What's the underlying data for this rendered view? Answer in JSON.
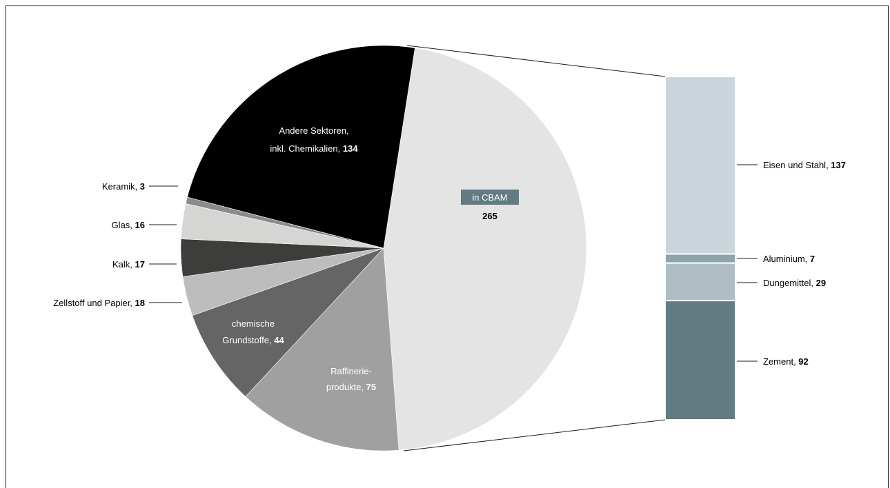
{
  "chart_data": {
    "type": "pie",
    "pie": {
      "slices": [
        {
          "label": "in CBAM",
          "value": 265,
          "color": "#e3e4e3"
        },
        {
          "label": "Raffinerie-produkte",
          "value": 75,
          "color": "#9fa09f"
        },
        {
          "label": "chemische Grundstoffe",
          "value": 44,
          "color": "#646564"
        },
        {
          "label": "Zellstoff und Papier",
          "value": 18,
          "color": "#bcbdbc"
        },
        {
          "label": "Kalk",
          "value": 17,
          "color": "#3d3d3b"
        },
        {
          "label": "Glas",
          "value": 16,
          "color": "#d5d5d4"
        },
        {
          "label": "Keramik",
          "value": 3,
          "color": "#8a8b8a"
        },
        {
          "label": "Andere Sektoren, inkl. Chemikalien",
          "value": 134,
          "color": "#000000"
        }
      ]
    },
    "bar": {
      "segments": [
        {
          "label": "Eisen und Stahl",
          "value": 137,
          "color": "#cbd6dc"
        },
        {
          "label": "Aluminium",
          "value": 7,
          "color": "#8ea3ac"
        },
        {
          "label": "Dungemittel",
          "value": 29,
          "color": "#aebec4"
        },
        {
          "label": "Zement",
          "value": 92,
          "color": "#627a82"
        }
      ]
    }
  },
  "labels": {
    "andere_line1": "Andere Sektoren,",
    "andere_line2": "inkl. Chemikalien, ",
    "andere_value": "134",
    "cbam_label": "in CBAM",
    "cbam_value": "265",
    "raff_line1": "Raffinerie-",
    "raff_line2": "produkte, ",
    "raff_value": "75",
    "chem_line1": "chemische",
    "chem_line2": "Grundstoffe, ",
    "chem_value": "44",
    "keramik_name": "Keramik, ",
    "keramik_value": "3",
    "glas_name": "Glas, ",
    "glas_value": "16",
    "kalk_name": "Kalk, ",
    "kalk_value": "17",
    "zellstoff_name": "Zellstoff und Papier, ",
    "zellstoff_value": "18",
    "eisen_name": "Eisen und Stahl, ",
    "eisen_value": "137",
    "alu_name": "Aluminium, ",
    "alu_value": "7",
    "dung_name": "Dungemittel, ",
    "dung_value": "29",
    "zement_name": "Zement, ",
    "zement_value": "92"
  }
}
